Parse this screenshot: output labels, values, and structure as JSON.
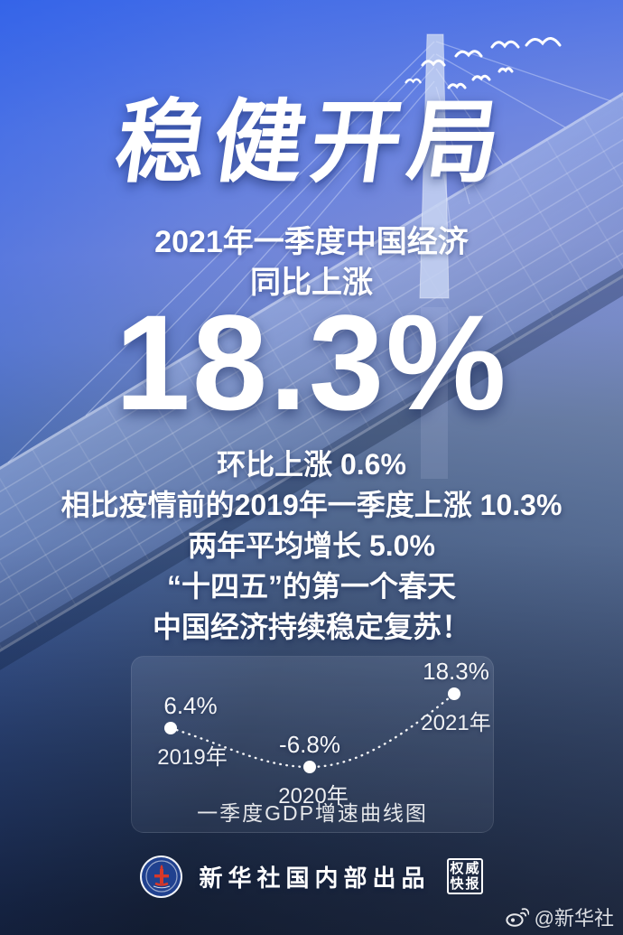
{
  "poster": {
    "title": "稳健开局",
    "subtitle_line1": "2021年一季度中国经济",
    "subtitle_line2": "同比上涨",
    "headline_value": "18.3%",
    "stats": [
      "环比上涨 0.6%",
      "相比疫情前的2019年一季度上涨 10.3%",
      "两年平均增长 5.0%",
      "“十四五”的第一个春天",
      "中国经济持续稳定复苏！"
    ]
  },
  "chart_data": {
    "type": "line",
    "title": "一季度GDP增速曲线图",
    "categories": [
      "2019年",
      "2020年",
      "2021年"
    ],
    "values": [
      6.4,
      -6.8,
      18.3
    ],
    "point_labels": [
      "6.4%",
      "-6.8%",
      "18.3%"
    ],
    "unit": "%",
    "ylim": [
      -10,
      22
    ],
    "line_style": "dotted",
    "line_color": "#ffffff",
    "point_color": "#ffffff",
    "grid": false,
    "legend_position": "none"
  },
  "footer": {
    "producer": "新华社国内部出品",
    "stamp_top": "权威",
    "stamp_bottom": "快报",
    "watermark": "@新华社"
  },
  "icons": {
    "logo": "xinhua-emblem-icon",
    "watermark": "weibo-icon",
    "decor": "doves-icon"
  },
  "colors": {
    "sky_blue": "#4d72e6",
    "periwinkle": "#7e8dd6",
    "water_slate": "#43597f",
    "bottom_navy": "#1b2840",
    "text_white": "#ffffff",
    "logo_blue": "#20418f",
    "logo_red": "#d6382a"
  }
}
